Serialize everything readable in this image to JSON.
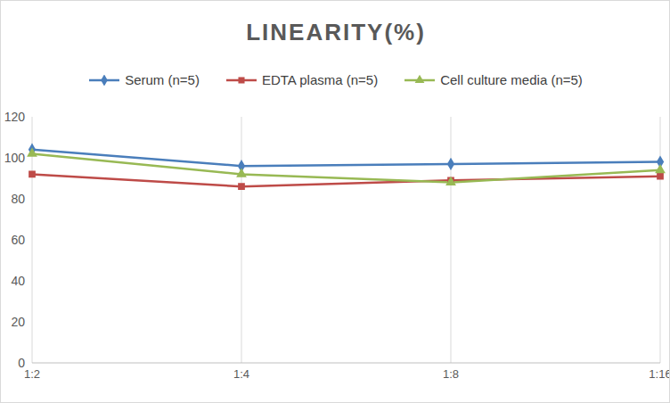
{
  "chart_data": {
    "type": "line",
    "title": "LINEARITY(%)",
    "categories": [
      "1:2",
      "1:4",
      "1:8",
      "1:16"
    ],
    "series": [
      {
        "name": "Serum (n=5)",
        "color": "#4a7ebb",
        "marker": "diamond",
        "values": [
          104,
          96,
          97,
          98
        ]
      },
      {
        "name": "EDTA plasma (n=5)",
        "color": "#be4b48",
        "marker": "square",
        "values": [
          92,
          86,
          89,
          91
        ]
      },
      {
        "name": "Cell culture media (n=5)",
        "color": "#98b954",
        "marker": "triangle",
        "values": [
          102,
          92,
          88,
          94
        ]
      }
    ],
    "ylim": [
      0,
      120
    ],
    "yticks": [
      0,
      20,
      40,
      60,
      80,
      100,
      120
    ],
    "grid": true,
    "legend": "top"
  }
}
